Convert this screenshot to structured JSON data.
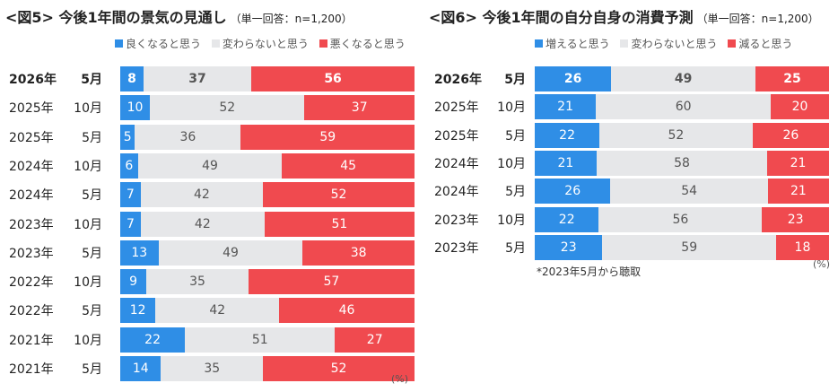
{
  "colors": {
    "good": "#2f8ee6",
    "same": "#e6e7e9",
    "bad": "#f04a4f"
  },
  "chart_data": [
    {
      "type": "bar",
      "stacked": true,
      "orientation": "horizontal",
      "title": "<図5> 今後1年間の景気の見通し",
      "subtitle": "（単一回答：n=1,200）",
      "unit": "(%)",
      "legend": [
        "良くなると思う",
        "変わらないと思う",
        "悪くなると思う"
      ],
      "rows": [
        {
          "year": "2026年",
          "month": "5月",
          "values": [
            8,
            37,
            56
          ],
          "bold": true
        },
        {
          "year": "2025年",
          "month": "10月",
          "values": [
            10,
            52,
            37
          ]
        },
        {
          "year": "2025年",
          "month": "5月",
          "values": [
            5,
            36,
            59
          ]
        },
        {
          "year": "2024年",
          "month": "10月",
          "values": [
            6,
            49,
            45
          ]
        },
        {
          "year": "2024年",
          "month": "5月",
          "values": [
            7,
            42,
            52
          ]
        },
        {
          "year": "2023年",
          "month": "10月",
          "values": [
            7,
            42,
            51
          ]
        },
        {
          "year": "2023年",
          "month": "5月",
          "values": [
            13,
            49,
            38
          ]
        },
        {
          "year": "2022年",
          "month": "10月",
          "values": [
            9,
            35,
            57
          ]
        },
        {
          "year": "2022年",
          "month": "5月",
          "values": [
            12,
            42,
            46
          ]
        },
        {
          "year": "2021年",
          "month": "10月",
          "values": [
            22,
            51,
            27
          ]
        },
        {
          "year": "2021年",
          "month": "5月",
          "values": [
            14,
            35,
            52
          ]
        }
      ]
    },
    {
      "type": "bar",
      "stacked": true,
      "orientation": "horizontal",
      "title": "<図6> 今後1年間の自分自身の消費予測",
      "subtitle": "（単一回答：n=1,200）",
      "unit": "(%)",
      "note": "*2023年5月から聴取",
      "legend": [
        "増えると思う",
        "変わらないと思う",
        "減ると思う"
      ],
      "rows": [
        {
          "year": "2026年",
          "month": "5月",
          "values": [
            26,
            49,
            25
          ],
          "bold": true
        },
        {
          "year": "2025年",
          "month": "10月",
          "values": [
            21,
            60,
            20
          ]
        },
        {
          "year": "2025年",
          "month": "5月",
          "values": [
            22,
            52,
            26
          ]
        },
        {
          "year": "2024年",
          "month": "10月",
          "values": [
            21,
            58,
            21
          ]
        },
        {
          "year": "2024年",
          "month": "5月",
          "values": [
            26,
            54,
            21
          ]
        },
        {
          "year": "2023年",
          "month": "10月",
          "values": [
            22,
            56,
            23
          ]
        },
        {
          "year": "2023年",
          "month": "5月",
          "values": [
            23,
            59,
            18
          ]
        }
      ]
    }
  ]
}
